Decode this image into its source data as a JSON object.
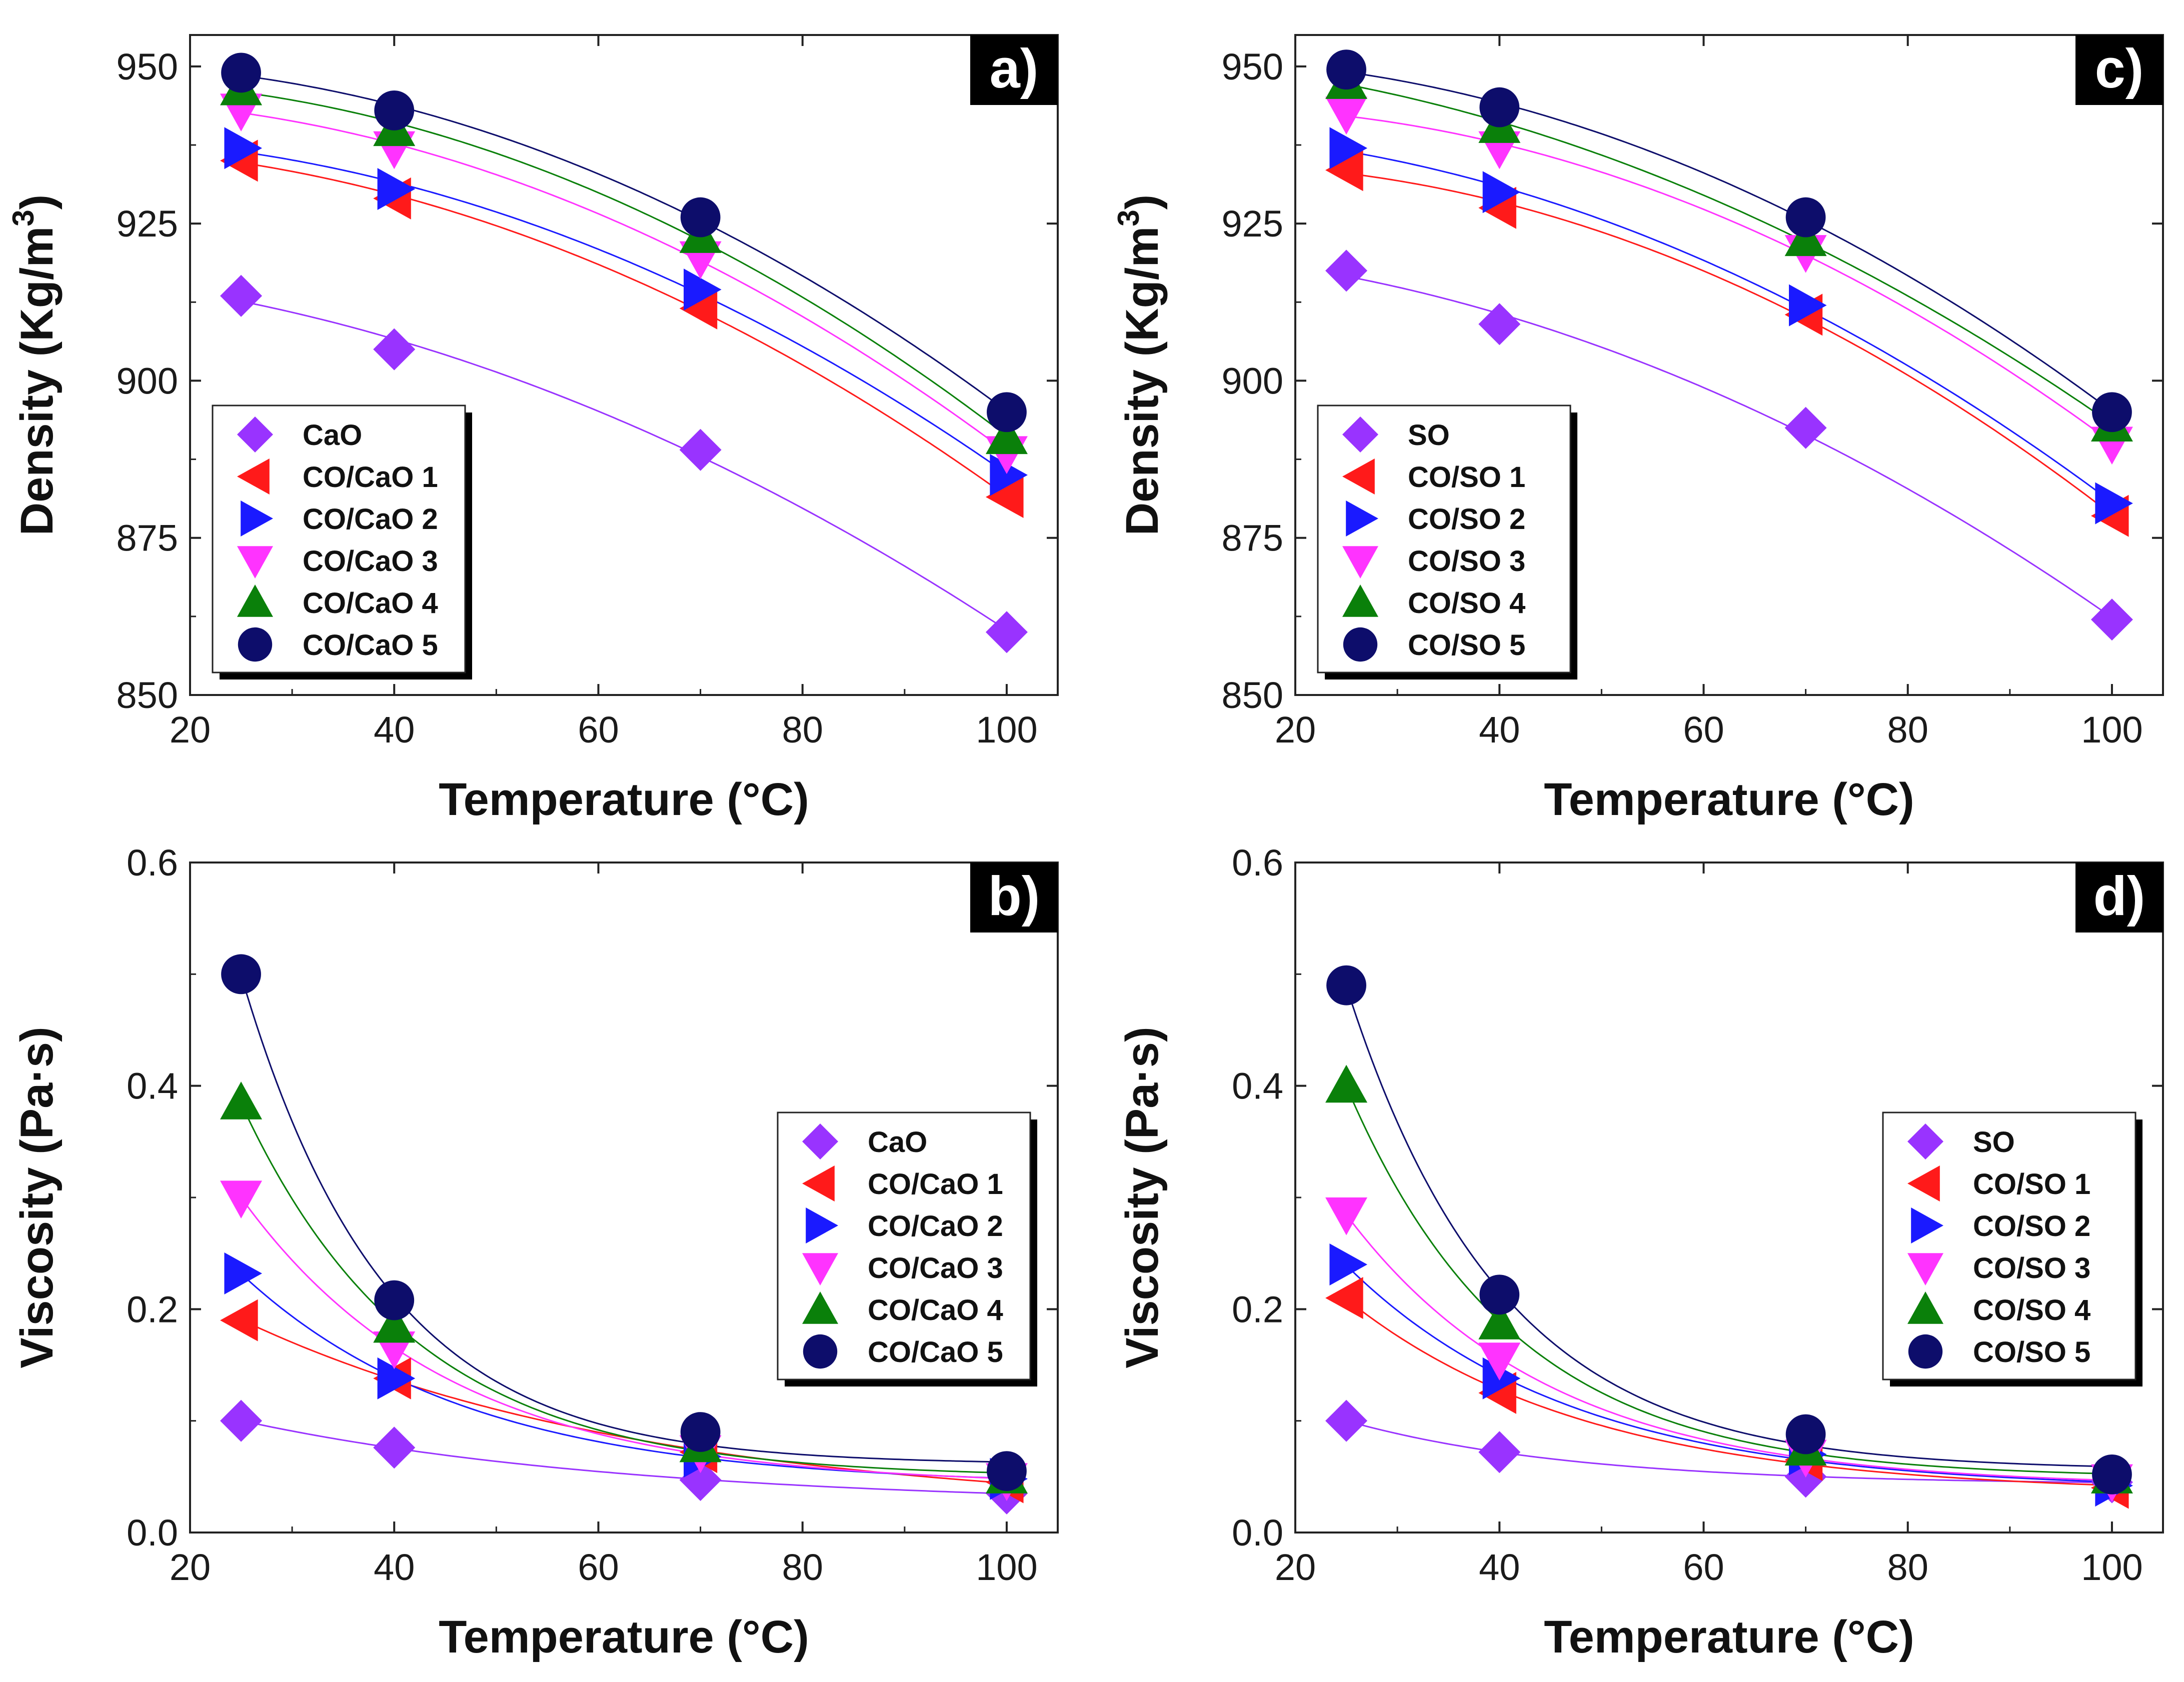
{
  "figure": {
    "description": "Density and viscosity vs temperature for CaO and SO based blends"
  },
  "colors": {
    "s0": "#9933ff",
    "s1": "#ff1a1a",
    "s2": "#1a1aff",
    "s3": "#ff33ff",
    "s4": "#0a800a",
    "s5": "#0d0d6b",
    "legend_shadow": "#000000",
    "panel_label_bg": "#000000"
  },
  "chart_data": [
    {
      "id": "a",
      "panel_label": "a)",
      "type": "scatter",
      "fit": "smooth",
      "title": "",
      "xlabel": "Temperature (°C)",
      "ylabel": "Density (Kg/m",
      "ylabel_superscript": "3",
      "ylabel_suffix": ")",
      "xlim": [
        20,
        105
      ],
      "ylim": [
        850,
        955
      ],
      "xticks": [
        20,
        40,
        60,
        80,
        100
      ],
      "yticks": [
        850,
        875,
        900,
        925,
        950
      ],
      "grid": false,
      "legend_position": "lower-left",
      "x": [
        25,
        40,
        70,
        100
      ],
      "series": [
        {
          "name": "CaO",
          "marker": "diamond",
          "color_key": "s0",
          "values": [
            913.5,
            905,
            889,
            860
          ]
        },
        {
          "name": "CO/CaO 1",
          "marker": "triangle-left",
          "color_key": "s1",
          "values": [
            935,
            929,
            911.5,
            881.5
          ]
        },
        {
          "name": "CO/CaO 2",
          "marker": "triangle-right",
          "color_key": "s2",
          "values": [
            937,
            930.5,
            914.5,
            885
          ]
        },
        {
          "name": "CO/CaO 3",
          "marker": "triangle-down",
          "color_key": "s3",
          "values": [
            943,
            937,
            919.5,
            888.5
          ]
        },
        {
          "name": "CO/CaO 4",
          "marker": "triangle-up",
          "color_key": "s4",
          "values": [
            946.5,
            940,
            923,
            891
          ]
        },
        {
          "name": "CO/CaO 5",
          "marker": "circle",
          "color_key": "s5",
          "values": [
            949,
            943,
            926,
            895
          ]
        }
      ]
    },
    {
      "id": "b",
      "panel_label": "b)",
      "type": "scatter",
      "fit": "smooth",
      "title": "",
      "xlabel": "Temperature (°C)",
      "ylabel": "Viscosity (Pa·s)",
      "xlim": [
        20,
        105
      ],
      "ylim": [
        0.0,
        0.6
      ],
      "xticks": [
        20,
        40,
        60,
        80,
        100
      ],
      "yticks": [
        0.0,
        0.2,
        0.4,
        0.6
      ],
      "ytick_decimals": 1,
      "grid": false,
      "legend_position": "upper-right",
      "x": [
        25,
        40,
        70,
        100
      ],
      "series": [
        {
          "name": "CaO",
          "marker": "diamond",
          "color_key": "s0",
          "values": [
            0.1,
            0.076,
            0.047,
            0.035
          ]
        },
        {
          "name": "CO/CaO 1",
          "marker": "triangle-left",
          "color_key": "s1",
          "values": [
            0.19,
            0.138,
            0.072,
            0.045
          ]
        },
        {
          "name": "CO/CaO 2",
          "marker": "triangle-right",
          "color_key": "s2",
          "values": [
            0.232,
            0.138,
            0.068,
            0.048
          ]
        },
        {
          "name": "CO/CaO 3",
          "marker": "triangle-down",
          "color_key": "s3",
          "values": [
            0.3,
            0.165,
            0.072,
            0.047
          ]
        },
        {
          "name": "CO/CaO 4",
          "marker": "triangle-up",
          "color_key": "s4",
          "values": [
            0.385,
            0.185,
            0.078,
            0.05
          ]
        },
        {
          "name": "CO/CaO 5",
          "marker": "circle",
          "color_key": "s5",
          "values": [
            0.5,
            0.208,
            0.09,
            0.055
          ]
        }
      ]
    },
    {
      "id": "c",
      "panel_label": "c)",
      "type": "scatter",
      "fit": "smooth",
      "title": "",
      "xlabel": "Temperature (°C)",
      "ylabel": "Density (Kg/m",
      "ylabel_superscript": "3",
      "ylabel_suffix": ")",
      "xlim": [
        20,
        105
      ],
      "ylim": [
        850,
        955
      ],
      "xticks": [
        20,
        40,
        60,
        80,
        100
      ],
      "yticks": [
        850,
        875,
        900,
        925,
        950
      ],
      "grid": false,
      "legend_position": "lower-left",
      "x": [
        25,
        40,
        70,
        100
      ],
      "series": [
        {
          "name": "SO",
          "marker": "diamond",
          "color_key": "s0",
          "values": [
            917.5,
            909,
            892.5,
            862
          ]
        },
        {
          "name": "CO/SO 1",
          "marker": "triangle-left",
          "color_key": "s1",
          "values": [
            933.5,
            927.5,
            910.5,
            878.5
          ]
        },
        {
          "name": "CO/SO 2",
          "marker": "triangle-right",
          "color_key": "s2",
          "values": [
            937,
            930,
            912,
            880.5
          ]
        },
        {
          "name": "CO/SO 3",
          "marker": "triangle-down",
          "color_key": "s3",
          "values": [
            942.5,
            937,
            920.5,
            890
          ]
        },
        {
          "name": "CO/SO 4",
          "marker": "triangle-up",
          "color_key": "s4",
          "values": [
            947.5,
            940.5,
            922.5,
            893
          ]
        },
        {
          "name": "CO/SO 5",
          "marker": "circle",
          "color_key": "s5",
          "values": [
            949.5,
            943.5,
            926,
            895
          ]
        }
      ]
    },
    {
      "id": "d",
      "panel_label": "d)",
      "type": "scatter",
      "fit": "smooth",
      "title": "",
      "xlabel": "Temperature (°C)",
      "ylabel": "Viscosity (Pa·s)",
      "xlim": [
        20,
        105
      ],
      "ylim": [
        0.0,
        0.6
      ],
      "xticks": [
        20,
        40,
        60,
        80,
        100
      ],
      "yticks": [
        0.0,
        0.2,
        0.4,
        0.6
      ],
      "ytick_decimals": 1,
      "grid": false,
      "legend_position": "upper-right",
      "x": [
        25,
        40,
        70,
        100
      ],
      "series": [
        {
          "name": "SO",
          "marker": "diamond",
          "color_key": "s0",
          "values": [
            0.1,
            0.072,
            0.05,
            0.045
          ]
        },
        {
          "name": "CO/SO 1",
          "marker": "triangle-left",
          "color_key": "s1",
          "values": [
            0.21,
            0.125,
            0.065,
            0.04
          ]
        },
        {
          "name": "CO/SO 2",
          "marker": "triangle-right",
          "color_key": "s2",
          "values": [
            0.24,
            0.138,
            0.07,
            0.042
          ]
        },
        {
          "name": "CO/SO 3",
          "marker": "triangle-down",
          "color_key": "s3",
          "values": [
            0.285,
            0.155,
            0.068,
            0.046
          ]
        },
        {
          "name": "CO/SO 4",
          "marker": "triangle-up",
          "color_key": "s4",
          "values": [
            0.4,
            0.188,
            0.075,
            0.05
          ]
        },
        {
          "name": "CO/SO 5",
          "marker": "circle",
          "color_key": "s5",
          "values": [
            0.49,
            0.213,
            0.088,
            0.052
          ]
        }
      ]
    }
  ]
}
